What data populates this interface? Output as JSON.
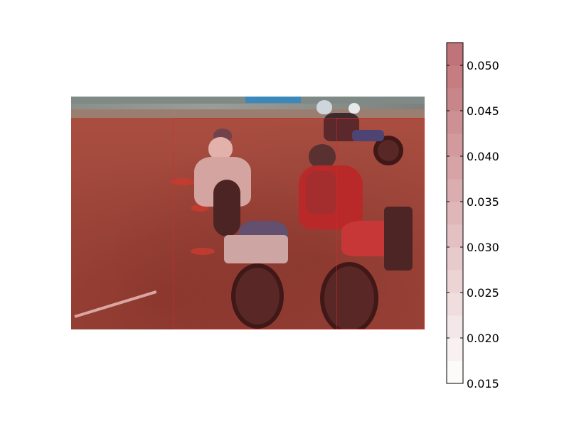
{
  "chart_data": {
    "type": "heatmap",
    "title": "",
    "colorbar": {
      "min": 0.015,
      "max": 0.0525,
      "ticks": [
        "0.015",
        "0.020",
        "0.025",
        "0.030",
        "0.035",
        "0.040",
        "0.045",
        "0.050"
      ],
      "tick_values": [
        0.015,
        0.02,
        0.025,
        0.03,
        0.035,
        0.04,
        0.045,
        0.05
      ],
      "levels": 15,
      "colormap": "white-to-red (alpha shaded)"
    },
    "background_image": "motocross riders on dirt track",
    "overlay_color": "#c82828"
  }
}
